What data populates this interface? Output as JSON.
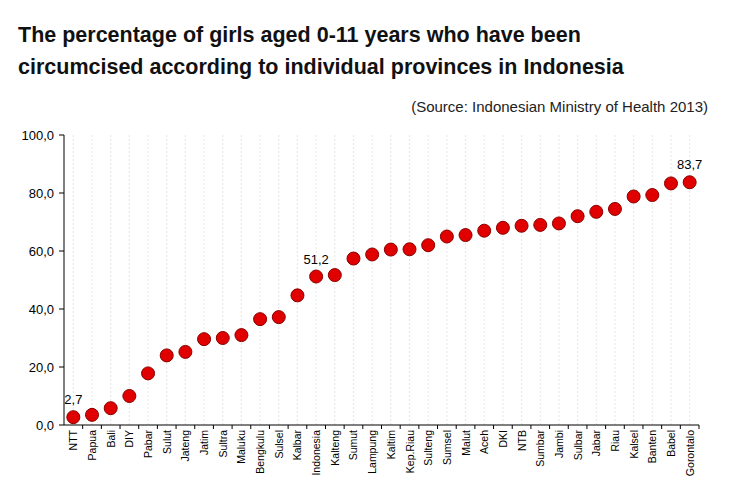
{
  "chart_data": {
    "type": "scatter",
    "title": "The percentage of girls aged 0-11 years who have been\ncircumcised according to individual provinces in Indonesia",
    "subtitle": "(Source: Indonesian Ministry of Health 2013)",
    "categories": [
      "NTT",
      "Papua",
      "Bali",
      "DIY",
      "Pabar",
      "Sulut",
      "Jateng",
      "Jatim",
      "Sultra",
      "Maluku",
      "Bengkulu",
      "Sulsel",
      "Kalbar",
      "Indonesia",
      "Kalteng",
      "Sumut",
      "Lampung",
      "Kaltim",
      "Kep.Riau",
      "Sulteng",
      "Sumsel",
      "Malut",
      "Aceh",
      "DKI",
      "NTB",
      "Sumbar",
      "Jambi",
      "Sulbar",
      "Jabar",
      "Riau",
      "Kalsel",
      "Banten",
      "Babel",
      "Gorontalo"
    ],
    "values": [
      2.7,
      3.5,
      5.8,
      10,
      17.8,
      24,
      25.2,
      29.6,
      30,
      31,
      36.5,
      37.2,
      44.7,
      51.2,
      51.7,
      57.4,
      58.8,
      60.5,
      60.6,
      62,
      65,
      65.5,
      67,
      68,
      68.7,
      69,
      69.5,
      72,
      73.5,
      74.5,
      78.8,
      79.3,
      83.3,
      83.7
    ],
    "value_labels": [
      "2,7",
      null,
      null,
      null,
      null,
      null,
      null,
      null,
      null,
      null,
      null,
      null,
      null,
      "51,2",
      null,
      null,
      null,
      null,
      null,
      null,
      null,
      null,
      null,
      null,
      null,
      null,
      null,
      null,
      null,
      null,
      null,
      null,
      null,
      "83,7"
    ],
    "color": "#e00000",
    "marker": "circle",
    "ylim": [
      0,
      100
    ],
    "yticks": [
      {
        "value": 0,
        "label": "0,0"
      },
      {
        "value": 20,
        "label": "20,0"
      },
      {
        "value": 40,
        "label": "40,0"
      },
      {
        "value": 60,
        "label": "60,0"
      },
      {
        "value": 80,
        "label": "80,0"
      },
      {
        "value": 100,
        "label": "100,0"
      }
    ],
    "grid": true
  }
}
